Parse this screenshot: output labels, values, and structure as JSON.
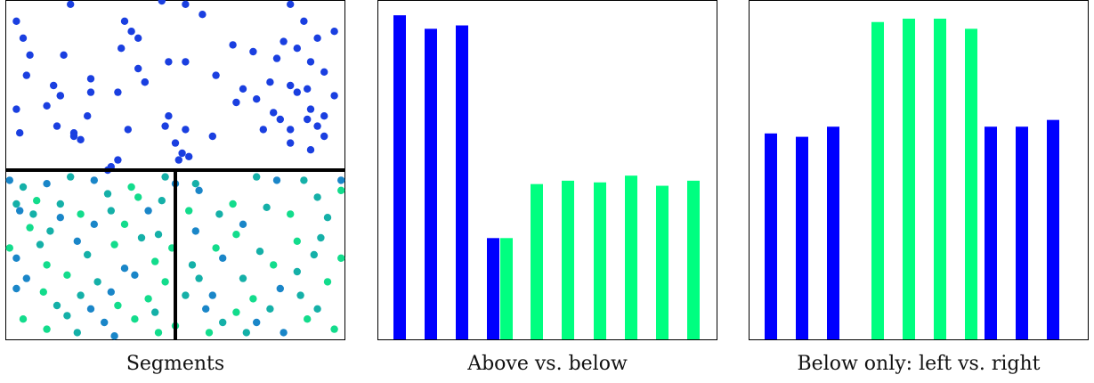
{
  "panels": [
    {
      "caption": "Segments"
    },
    {
      "caption": "Above vs. below"
    },
    {
      "caption": "Below only: left vs. right"
    }
  ],
  "chart_data": [
    {
      "type": "scatter",
      "title": "Segments",
      "colors": {
        "above": "#1a3fe0",
        "below_mid": "#1a86c8",
        "below_alt": "#15b0a8",
        "below_light": "#13dc8c",
        "divider": "#000000"
      },
      "xlim": [
        0,
        1
      ],
      "ylim": [
        0,
        1
      ],
      "split_y": 0.5,
      "split_x": 0.5,
      "above_points": [
        [
          0.19,
          0.99
        ],
        [
          0.46,
          1.0
        ],
        [
          0.53,
          0.99
        ],
        [
          0.84,
          0.99
        ],
        [
          0.03,
          0.94
        ],
        [
          0.35,
          0.94
        ],
        [
          0.58,
          0.96
        ],
        [
          0.88,
          0.94
        ],
        [
          0.05,
          0.89
        ],
        [
          0.37,
          0.91
        ],
        [
          0.39,
          0.89
        ],
        [
          0.67,
          0.87
        ],
        [
          0.97,
          0.91
        ],
        [
          0.82,
          0.88
        ],
        [
          0.86,
          0.86
        ],
        [
          0.92,
          0.89
        ],
        [
          0.07,
          0.84
        ],
        [
          0.17,
          0.84
        ],
        [
          0.34,
          0.86
        ],
        [
          0.73,
          0.85
        ],
        [
          0.8,
          0.83
        ],
        [
          0.9,
          0.82
        ],
        [
          0.06,
          0.78
        ],
        [
          0.39,
          0.8
        ],
        [
          0.48,
          0.82
        ],
        [
          0.53,
          0.82
        ],
        [
          0.62,
          0.78
        ],
        [
          0.94,
          0.79
        ],
        [
          0.14,
          0.75
        ],
        [
          0.25,
          0.77
        ],
        [
          0.33,
          0.73
        ],
        [
          0.41,
          0.76
        ],
        [
          0.7,
          0.74
        ],
        [
          0.78,
          0.76
        ],
        [
          0.84,
          0.75
        ],
        [
          0.89,
          0.74
        ],
        [
          0.12,
          0.69
        ],
        [
          0.16,
          0.72
        ],
        [
          0.25,
          0.73
        ],
        [
          0.41,
          0.76
        ],
        [
          0.68,
          0.7
        ],
        [
          0.86,
          0.73
        ],
        [
          0.9,
          0.68
        ],
        [
          0.97,
          0.72
        ],
        [
          0.03,
          0.68
        ],
        [
          0.16,
          0.72
        ],
        [
          0.24,
          0.66
        ],
        [
          0.48,
          0.66
        ],
        [
          0.74,
          0.71
        ],
        [
          0.79,
          0.67
        ],
        [
          0.81,
          0.65
        ],
        [
          0.89,
          0.65
        ],
        [
          0.94,
          0.66
        ],
        [
          0.04,
          0.61
        ],
        [
          0.15,
          0.63
        ],
        [
          0.2,
          0.61
        ],
        [
          0.36,
          0.62
        ],
        [
          0.47,
          0.63
        ],
        [
          0.53,
          0.62
        ],
        [
          0.76,
          0.62
        ],
        [
          0.84,
          0.62
        ],
        [
          0.92,
          0.63
        ],
        [
          0.2,
          0.6
        ],
        [
          0.5,
          0.58
        ],
        [
          0.52,
          0.55
        ],
        [
          0.84,
          0.58
        ],
        [
          0.94,
          0.6
        ],
        [
          0.61,
          0.6
        ],
        [
          0.22,
          0.59
        ],
        [
          0.54,
          0.54
        ],
        [
          0.9,
          0.56
        ],
        [
          0.33,
          0.53
        ],
        [
          0.31,
          0.51
        ],
        [
          0.3,
          0.5
        ],
        [
          0.51,
          0.53
        ]
      ],
      "below_points": [
        [
          0.01,
          0.47
        ],
        [
          0.05,
          0.45
        ],
        [
          0.12,
          0.46
        ],
        [
          0.19,
          0.48
        ],
        [
          0.26,
          0.47
        ],
        [
          0.37,
          0.45
        ],
        [
          0.47,
          0.48
        ],
        [
          0.5,
          0.46
        ],
        [
          0.56,
          0.46
        ],
        [
          0.74,
          0.48
        ],
        [
          0.8,
          0.47
        ],
        [
          0.88,
          0.47
        ],
        [
          0.99,
          0.47
        ],
        [
          0.03,
          0.4
        ],
        [
          0.09,
          0.41
        ],
        [
          0.16,
          0.4
        ],
        [
          0.3,
          0.43
        ],
        [
          0.39,
          0.42
        ],
        [
          0.46,
          0.41
        ],
        [
          0.57,
          0.44
        ],
        [
          0.67,
          0.4
        ],
        [
          0.77,
          0.39
        ],
        [
          0.92,
          0.42
        ],
        [
          0.99,
          0.44
        ],
        [
          0.04,
          0.38
        ],
        [
          0.08,
          0.37
        ],
        [
          0.16,
          0.36
        ],
        [
          0.22,
          0.37
        ],
        [
          0.31,
          0.38
        ],
        [
          0.42,
          0.38
        ],
        [
          0.54,
          0.38
        ],
        [
          0.63,
          0.37
        ],
        [
          0.7,
          0.34
        ],
        [
          0.84,
          0.37
        ],
        [
          0.95,
          0.36
        ],
        [
          0.07,
          0.33
        ],
        [
          0.13,
          0.32
        ],
        [
          0.26,
          0.34
        ],
        [
          0.35,
          0.34
        ],
        [
          0.45,
          0.31
        ],
        [
          0.56,
          0.32
        ],
        [
          0.68,
          0.31
        ],
        [
          0.86,
          0.29
        ],
        [
          0.93,
          0.3
        ],
        [
          0.01,
          0.27
        ],
        [
          0.1,
          0.28
        ],
        [
          0.21,
          0.29
        ],
        [
          0.32,
          0.28
        ],
        [
          0.4,
          0.3
        ],
        [
          0.49,
          0.27
        ],
        [
          0.62,
          0.27
        ],
        [
          0.75,
          0.26
        ],
        [
          0.91,
          0.25
        ],
        [
          0.99,
          0.24
        ],
        [
          0.03,
          0.24
        ],
        [
          0.12,
          0.22
        ],
        [
          0.24,
          0.25
        ],
        [
          0.35,
          0.21
        ],
        [
          0.44,
          0.23
        ],
        [
          0.55,
          0.22
        ],
        [
          0.64,
          0.24
        ],
        [
          0.79,
          0.22
        ],
        [
          0.86,
          0.2
        ],
        [
          0.06,
          0.18
        ],
        [
          0.18,
          0.19
        ],
        [
          0.27,
          0.17
        ],
        [
          0.38,
          0.19
        ],
        [
          0.47,
          0.17
        ],
        [
          0.57,
          0.18
        ],
        [
          0.7,
          0.18
        ],
        [
          0.81,
          0.15
        ],
        [
          0.95,
          0.17
        ],
        [
          0.03,
          0.15
        ],
        [
          0.11,
          0.14
        ],
        [
          0.22,
          0.13
        ],
        [
          0.31,
          0.14
        ],
        [
          0.42,
          0.12
        ],
        [
          0.53,
          0.13
        ],
        [
          0.61,
          0.13
        ],
        [
          0.73,
          0.12
        ],
        [
          0.87,
          0.13
        ],
        [
          0.15,
          0.1
        ],
        [
          0.25,
          0.09
        ],
        [
          0.33,
          0.1
        ],
        [
          0.44,
          0.08
        ],
        [
          0.59,
          0.09
        ],
        [
          0.68,
          0.08
        ],
        [
          0.78,
          0.09
        ],
        [
          0.92,
          0.09
        ],
        [
          0.05,
          0.06
        ],
        [
          0.18,
          0.07
        ],
        [
          0.29,
          0.05
        ],
        [
          0.38,
          0.06
        ],
        [
          0.5,
          0.04
        ],
        [
          0.64,
          0.05
        ],
        [
          0.74,
          0.05
        ],
        [
          0.89,
          0.06
        ],
        [
          0.12,
          0.03
        ],
        [
          0.21,
          0.02
        ],
        [
          0.32,
          0.01
        ],
        [
          0.45,
          0.02
        ],
        [
          0.6,
          0.02
        ],
        [
          0.71,
          0.02
        ],
        [
          0.82,
          0.02
        ],
        [
          0.97,
          0.03
        ]
      ]
    },
    {
      "type": "bar",
      "title": "Above vs. below",
      "series": [
        {
          "values": [
            0.96,
            0.92,
            0.93,
            0.3
          ]
        },
        {
          "values": [
            0.3,
            0.46,
            0.47,
            0.465,
            0.485,
            0.455,
            0.47
          ]
        }
      ],
      "bar_colors": {
        "first": "#0000ff",
        "second": "#00ff80"
      },
      "ylim": [
        0,
        1
      ]
    },
    {
      "type": "bar",
      "title": "Below only: left vs. right",
      "series": [
        {
          "values": [
            0.61,
            0.6,
            0.63
          ]
        },
        {
          "values": [
            0.94,
            0.95,
            0.95,
            0.92
          ]
        },
        {
          "values": [
            0.63,
            0.63,
            0.65
          ]
        }
      ],
      "bar_colors": {
        "first": "#0000ff",
        "second": "#00ff80"
      },
      "ylim": [
        0,
        1
      ]
    }
  ]
}
